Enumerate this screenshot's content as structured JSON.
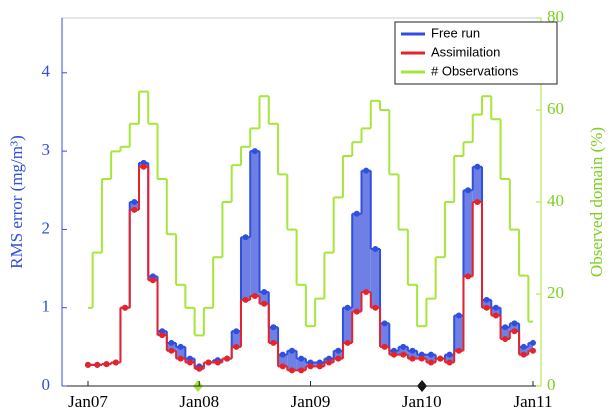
{
  "chart_data": {
    "type": "step",
    "categories": [
      "Jan07",
      null,
      null,
      null,
      null,
      null,
      null,
      null,
      null,
      null,
      null,
      null,
      "Jan08",
      null,
      null,
      null,
      null,
      null,
      null,
      null,
      null,
      null,
      null,
      null,
      "Jan09",
      null,
      null,
      null,
      null,
      null,
      null,
      null,
      null,
      null,
      null,
      null,
      "Jan10",
      null,
      null,
      null,
      null,
      null,
      null,
      null,
      null,
      null,
      null,
      null,
      "Jan11"
    ],
    "ylabel": "RMS error (mg/m³)",
    "y2label": "Observed domain (%)",
    "ylim": [
      0,
      4.7
    ],
    "yticks": [
      0,
      1,
      2,
      3,
      4
    ],
    "y2lim": [
      0,
      80
    ],
    "y2ticks": [
      0,
      20,
      40,
      60,
      80
    ],
    "legend": "upper right",
    "fill_between": "#6f80e4",
    "series": [
      {
        "name": "Free run",
        "color": "#2f4fe0",
        "markers": true,
        "values": [
          0.27,
          0.27,
          0.28,
          0.3,
          1.0,
          2.35,
          2.85,
          1.4,
          0.7,
          0.55,
          0.5,
          0.35,
          0.25,
          0.3,
          0.33,
          0.35,
          0.7,
          1.9,
          3.0,
          1.2,
          0.75,
          0.4,
          0.45,
          0.35,
          0.3,
          0.3,
          0.35,
          0.45,
          1.0,
          2.2,
          2.75,
          1.75,
          0.8,
          0.45,
          0.5,
          0.45,
          0.4,
          0.4,
          0.35,
          0.4,
          0.9,
          2.5,
          2.8,
          1.1,
          1.0,
          0.75,
          0.8,
          0.5,
          0.55
        ]
      },
      {
        "name": "Assimilation",
        "color": "#e6222c",
        "markers": true,
        "values": [
          0.27,
          0.27,
          0.28,
          0.3,
          1.0,
          2.25,
          2.8,
          1.35,
          0.65,
          0.45,
          0.35,
          0.3,
          0.22,
          0.3,
          0.3,
          0.35,
          0.5,
          1.1,
          1.15,
          1.05,
          0.55,
          0.25,
          0.2,
          0.2,
          0.25,
          0.25,
          0.3,
          0.35,
          0.55,
          0.95,
          1.2,
          1.0,
          0.5,
          0.4,
          0.4,
          0.35,
          0.35,
          0.3,
          0.35,
          0.3,
          0.45,
          1.4,
          2.35,
          1.0,
          0.9,
          0.6,
          0.7,
          0.4,
          0.45
        ]
      },
      {
        "name": "# Observations",
        "color": "#a6e63a",
        "axis": "y2",
        "markers": false,
        "values": [
          17,
          29,
          45,
          51,
          52,
          57,
          64,
          57,
          45,
          33,
          22,
          17,
          11,
          17,
          28,
          40,
          48,
          52,
          56,
          63,
          57,
          46,
          34,
          22,
          13,
          19,
          29,
          41,
          50,
          53,
          56,
          62,
          60,
          46,
          34,
          22,
          13,
          19,
          28,
          40,
          50,
          53,
          59,
          63,
          58,
          45,
          34,
          24,
          14
        ]
      }
    ]
  }
}
